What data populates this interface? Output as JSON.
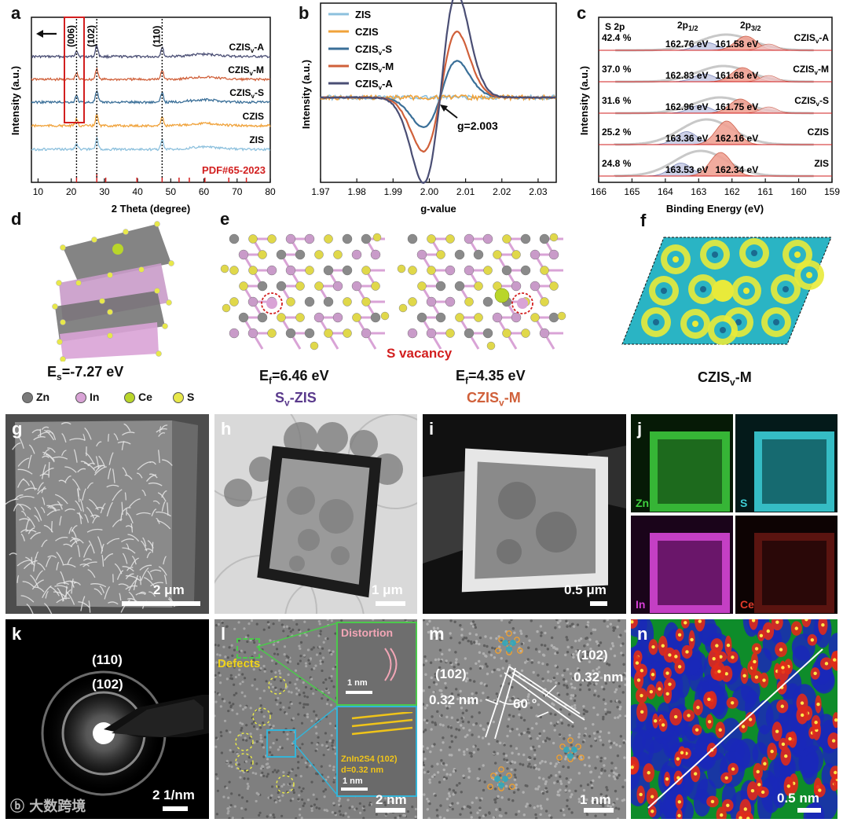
{
  "panel_labels": {
    "a": "a",
    "b": "b",
    "c": "c",
    "d": "d",
    "e": "e",
    "f": "f",
    "g": "g",
    "h": "h",
    "i": "i",
    "j": "j",
    "k": "k",
    "l": "l",
    "m": "m",
    "n": "n"
  },
  "chart_data": [
    {
      "id": "a",
      "type": "line",
      "title": "",
      "xlabel": "2 Theta (degree)",
      "ylabel": "Intensity (a.u.)",
      "xlim": [
        8,
        80
      ],
      "xticks": [
        "10",
        "20",
        "30",
        "40",
        "50",
        "60",
        "70",
        "80"
      ],
      "series": [
        {
          "name": "CZISv-A",
          "color": "#4a4e74"
        },
        {
          "name": "CZISv-M",
          "color": "#d0603a"
        },
        {
          "name": "CZISv-S",
          "color": "#3a6f98"
        },
        {
          "name": "CZIS",
          "color": "#f0a23a"
        },
        {
          "name": "ZIS",
          "color": "#8cc0dd"
        }
      ],
      "peaks": [
        {
          "label": "(006)",
          "x": 21.6
        },
        {
          "label": "(102)",
          "x": 27.7
        },
        {
          "label": "(110)",
          "x": 47.4
        }
      ],
      "reference": "PDF#65-2023",
      "reference_color": "#d21f1f"
    },
    {
      "id": "b",
      "type": "line",
      "title": "",
      "xlabel": "g-value",
      "ylabel": "Intensity (a.u.)",
      "xlim": [
        1.97,
        2.035
      ],
      "xticks": [
        "1.97",
        "1.98",
        "1.99",
        "2.00",
        "2.01",
        "2.02",
        "2.03"
      ],
      "series": [
        {
          "name": "ZIS",
          "color": "#8cc0dd",
          "amplitude": 0.0
        },
        {
          "name": "CZIS",
          "color": "#f0a23a",
          "amplitude": 0.0
        },
        {
          "name": "CZISv-S",
          "color": "#3a6f98",
          "amplitude": 0.35
        },
        {
          "name": "CZISv-M",
          "color": "#d0603a",
          "amplitude": 0.63
        },
        {
          "name": "CZISv-A",
          "color": "#4a4e74",
          "amplitude": 1.0
        }
      ],
      "annotation": "g=2.003",
      "center_g": 2.003
    },
    {
      "id": "c",
      "type": "line",
      "title": "S 2p",
      "xlabel": "Binding Energy (eV)",
      "ylabel": "Intensity (a.u.)",
      "xlim": [
        166,
        159
      ],
      "xticks": [
        "166",
        "165",
        "164",
        "163",
        "162",
        "161",
        "160",
        "159"
      ],
      "peak_labels": [
        "2p1/2",
        "2p3/2"
      ],
      "rows": [
        {
          "sample": "CZISv-A",
          "percent": "42.4 %",
          "p12": "162.76 eV",
          "p32": "161.58 eV",
          "p12_value": 162.76,
          "p32_value": 161.58
        },
        {
          "sample": "CZISv-M",
          "percent": "37.0 %",
          "p12": "162.83 eV",
          "p32": "161.68 eV",
          "p12_value": 162.83,
          "p32_value": 161.68
        },
        {
          "sample": "CZISv-S",
          "percent": "31.6 %",
          "p12": "162.96 eV",
          "p32": "161.75 eV",
          "p12_value": 162.96,
          "p32_value": 161.75
        },
        {
          "sample": "CZIS",
          "percent": "25.2 %",
          "p12": "163.36 eV",
          "p32": "162.16 eV",
          "p12_value": 163.36,
          "p32_value": 162.16
        },
        {
          "sample": "ZIS",
          "percent": "24.8 %",
          "p12": "163.53 eV",
          "p32": "162.34 eV",
          "p12_value": 163.53,
          "p32_value": 162.34
        }
      ]
    }
  ],
  "panel_d": {
    "energy_label": "E",
    "energy_sub": "s",
    "energy_value": "=-7.27 eV"
  },
  "panel_e": {
    "left_energy": "E",
    "left_sub": "f",
    "left_value": "=6.46 eV",
    "left_name": "S",
    "left_name_sub": "v",
    "left_name_rest": "-ZIS",
    "left_color": "#5a3a8c",
    "right_energy": "E",
    "right_sub": "f",
    "right_value": "=4.35 eV",
    "right_name": "CZIS",
    "right_name_sub": "v",
    "right_name_rest": "-M",
    "right_color": "#d0603a",
    "vacancy_label": "S vacancy",
    "vacancy_color": "#d21f1f"
  },
  "panel_f": {
    "name": "CZIS",
    "name_sub": "v",
    "name_rest": "-M"
  },
  "legend": [
    {
      "label": "Zn",
      "color": "#7a7a7a"
    },
    {
      "label": "In",
      "color": "#d9a3d6"
    },
    {
      "label": "Ce",
      "color": "#b9d62a"
    },
    {
      "label": "S",
      "color": "#e8e84a"
    }
  ],
  "panel_g": {
    "scale": "2 μm"
  },
  "panel_h": {
    "scale": "1 μm"
  },
  "panel_i": {
    "scale": "0.5 μm"
  },
  "panel_j": {
    "maps": [
      {
        "label": "Zn",
        "color": "#3fd13f"
      },
      {
        "label": "S",
        "color": "#3fcfd6"
      },
      {
        "label": "In",
        "color": "#d63fd6"
      },
      {
        "label": "Ce",
        "color": "#e03a2a"
      }
    ]
  },
  "panel_k": {
    "ring1": "(110)",
    "ring2": "(102)",
    "scale": "2 1/nm"
  },
  "panel_l": {
    "distortion": "Distortion",
    "defects": "Defects",
    "inset_scale1": "1 nm",
    "inset_label": "ZnIn2S4 (102)",
    "inset_d": "d=0.32 nm",
    "inset_scale2": "1 nm",
    "scale": "2 nm"
  },
  "panel_m": {
    "plane_left": "(102)",
    "plane_right": "(102)",
    "d_left": "0.32 nm",
    "d_right": "0.32 nm",
    "angle": "60 °",
    "scale": "1 nm"
  },
  "panel_n": {
    "scale": "0.5 nm"
  },
  "watermark": "大数跨境"
}
